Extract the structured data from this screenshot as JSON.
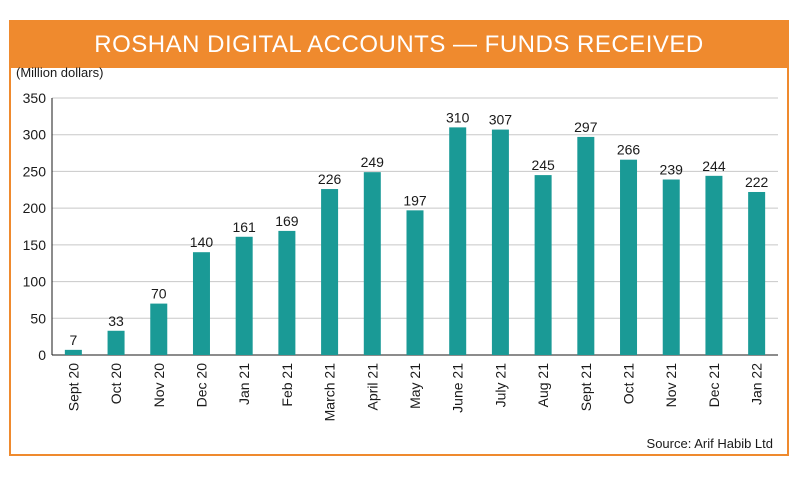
{
  "chart_data": {
    "type": "bar",
    "title": "ROSHAN DIGITAL ACCOUNTS — FUNDS RECEIVED",
    "ylabel": "(Million dollars)",
    "xlabel": "",
    "source": "Source: Arif Habib Ltd",
    "categories": [
      "Sept 20",
      "Oct 20",
      "Nov 20",
      "Dec 20",
      "Jan 21",
      "Feb 21",
      "March 21",
      "April 21",
      "May 21",
      "June 21",
      "July 21",
      "Aug 21",
      "Sept 21",
      "Oct 21",
      "Nov 21",
      "Dec 21",
      "Jan 22"
    ],
    "values": [
      7,
      33,
      70,
      140,
      161,
      169,
      226,
      249,
      197,
      310,
      307,
      245,
      297,
      266,
      239,
      244,
      222
    ],
    "ylim": [
      0,
      350
    ],
    "yticks": [
      0,
      50,
      100,
      150,
      200,
      250,
      300,
      350
    ],
    "grid": true,
    "legend": "none",
    "colors": {
      "bar": "#1a9a96",
      "accent": "#ef8a2e",
      "grid": "#c8c8c8"
    }
  }
}
